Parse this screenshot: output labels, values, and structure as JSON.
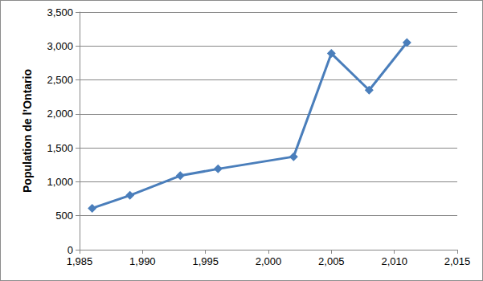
{
  "chart_data": {
    "type": "line",
    "y_label": "Population de l’Ontario",
    "x": [
      1986,
      1989,
      1993,
      1996,
      2002,
      2005,
      2008,
      2011
    ],
    "values": [
      610,
      800,
      1090,
      1190,
      1370,
      2890,
      2350,
      3050
    ],
    "color": "#4a7ebb",
    "marker": "diamond",
    "line_style": "solid",
    "xlim": [
      1985,
      2015
    ],
    "xticks": [
      1985,
      1990,
      1995,
      2000,
      2005,
      2010,
      2015
    ],
    "ylim": [
      0,
      3500
    ],
    "yticks": [
      0,
      500,
      1000,
      1500,
      2000,
      2500,
      3000,
      3500
    ],
    "grid": true
  }
}
